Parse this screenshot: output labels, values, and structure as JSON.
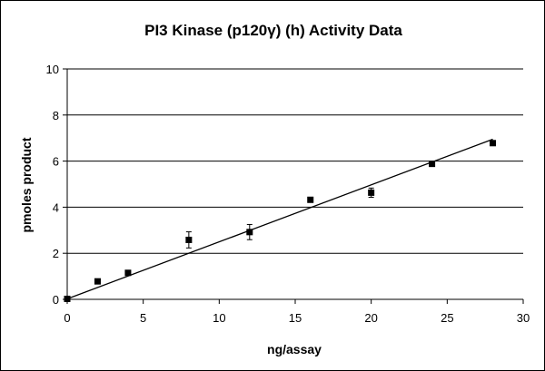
{
  "chart_data": {
    "type": "scatter",
    "title": "PI3 Kinase (p120γ) (h) Activity Data",
    "xlabel": "ng/assay",
    "ylabel": "pmoles product",
    "xlim": [
      0,
      30
    ],
    "ylim": [
      0,
      10
    ],
    "x_ticks": [
      "0",
      "5",
      "10",
      "15",
      "20",
      "25",
      "30"
    ],
    "y_ticks": [
      "0",
      "2",
      "4",
      "6",
      "8",
      "10"
    ],
    "grid": "horizontal major gridlines",
    "legend": "none",
    "points": [
      {
        "x": 0,
        "y": 0.02,
        "err": 0
      },
      {
        "x": 2,
        "y": 0.78,
        "err": 0
      },
      {
        "x": 4,
        "y": 1.15,
        "err": 0.08
      },
      {
        "x": 8,
        "y": 2.58,
        "err": 0.35
      },
      {
        "x": 12,
        "y": 2.92,
        "err": 0.33
      },
      {
        "x": 16,
        "y": 4.32,
        "err": 0
      },
      {
        "x": 20,
        "y": 4.63,
        "err": 0.2
      },
      {
        "x": 24,
        "y": 5.88,
        "err": 0
      },
      {
        "x": 28,
        "y": 6.78,
        "err": 0.08
      }
    ],
    "trendline": {
      "type": "linear",
      "x": [
        0,
        28
      ],
      "y": [
        0.02,
        6.95
      ]
    },
    "colors": {
      "marker": "#000000",
      "line": "#000000",
      "grid": "#000000"
    }
  }
}
